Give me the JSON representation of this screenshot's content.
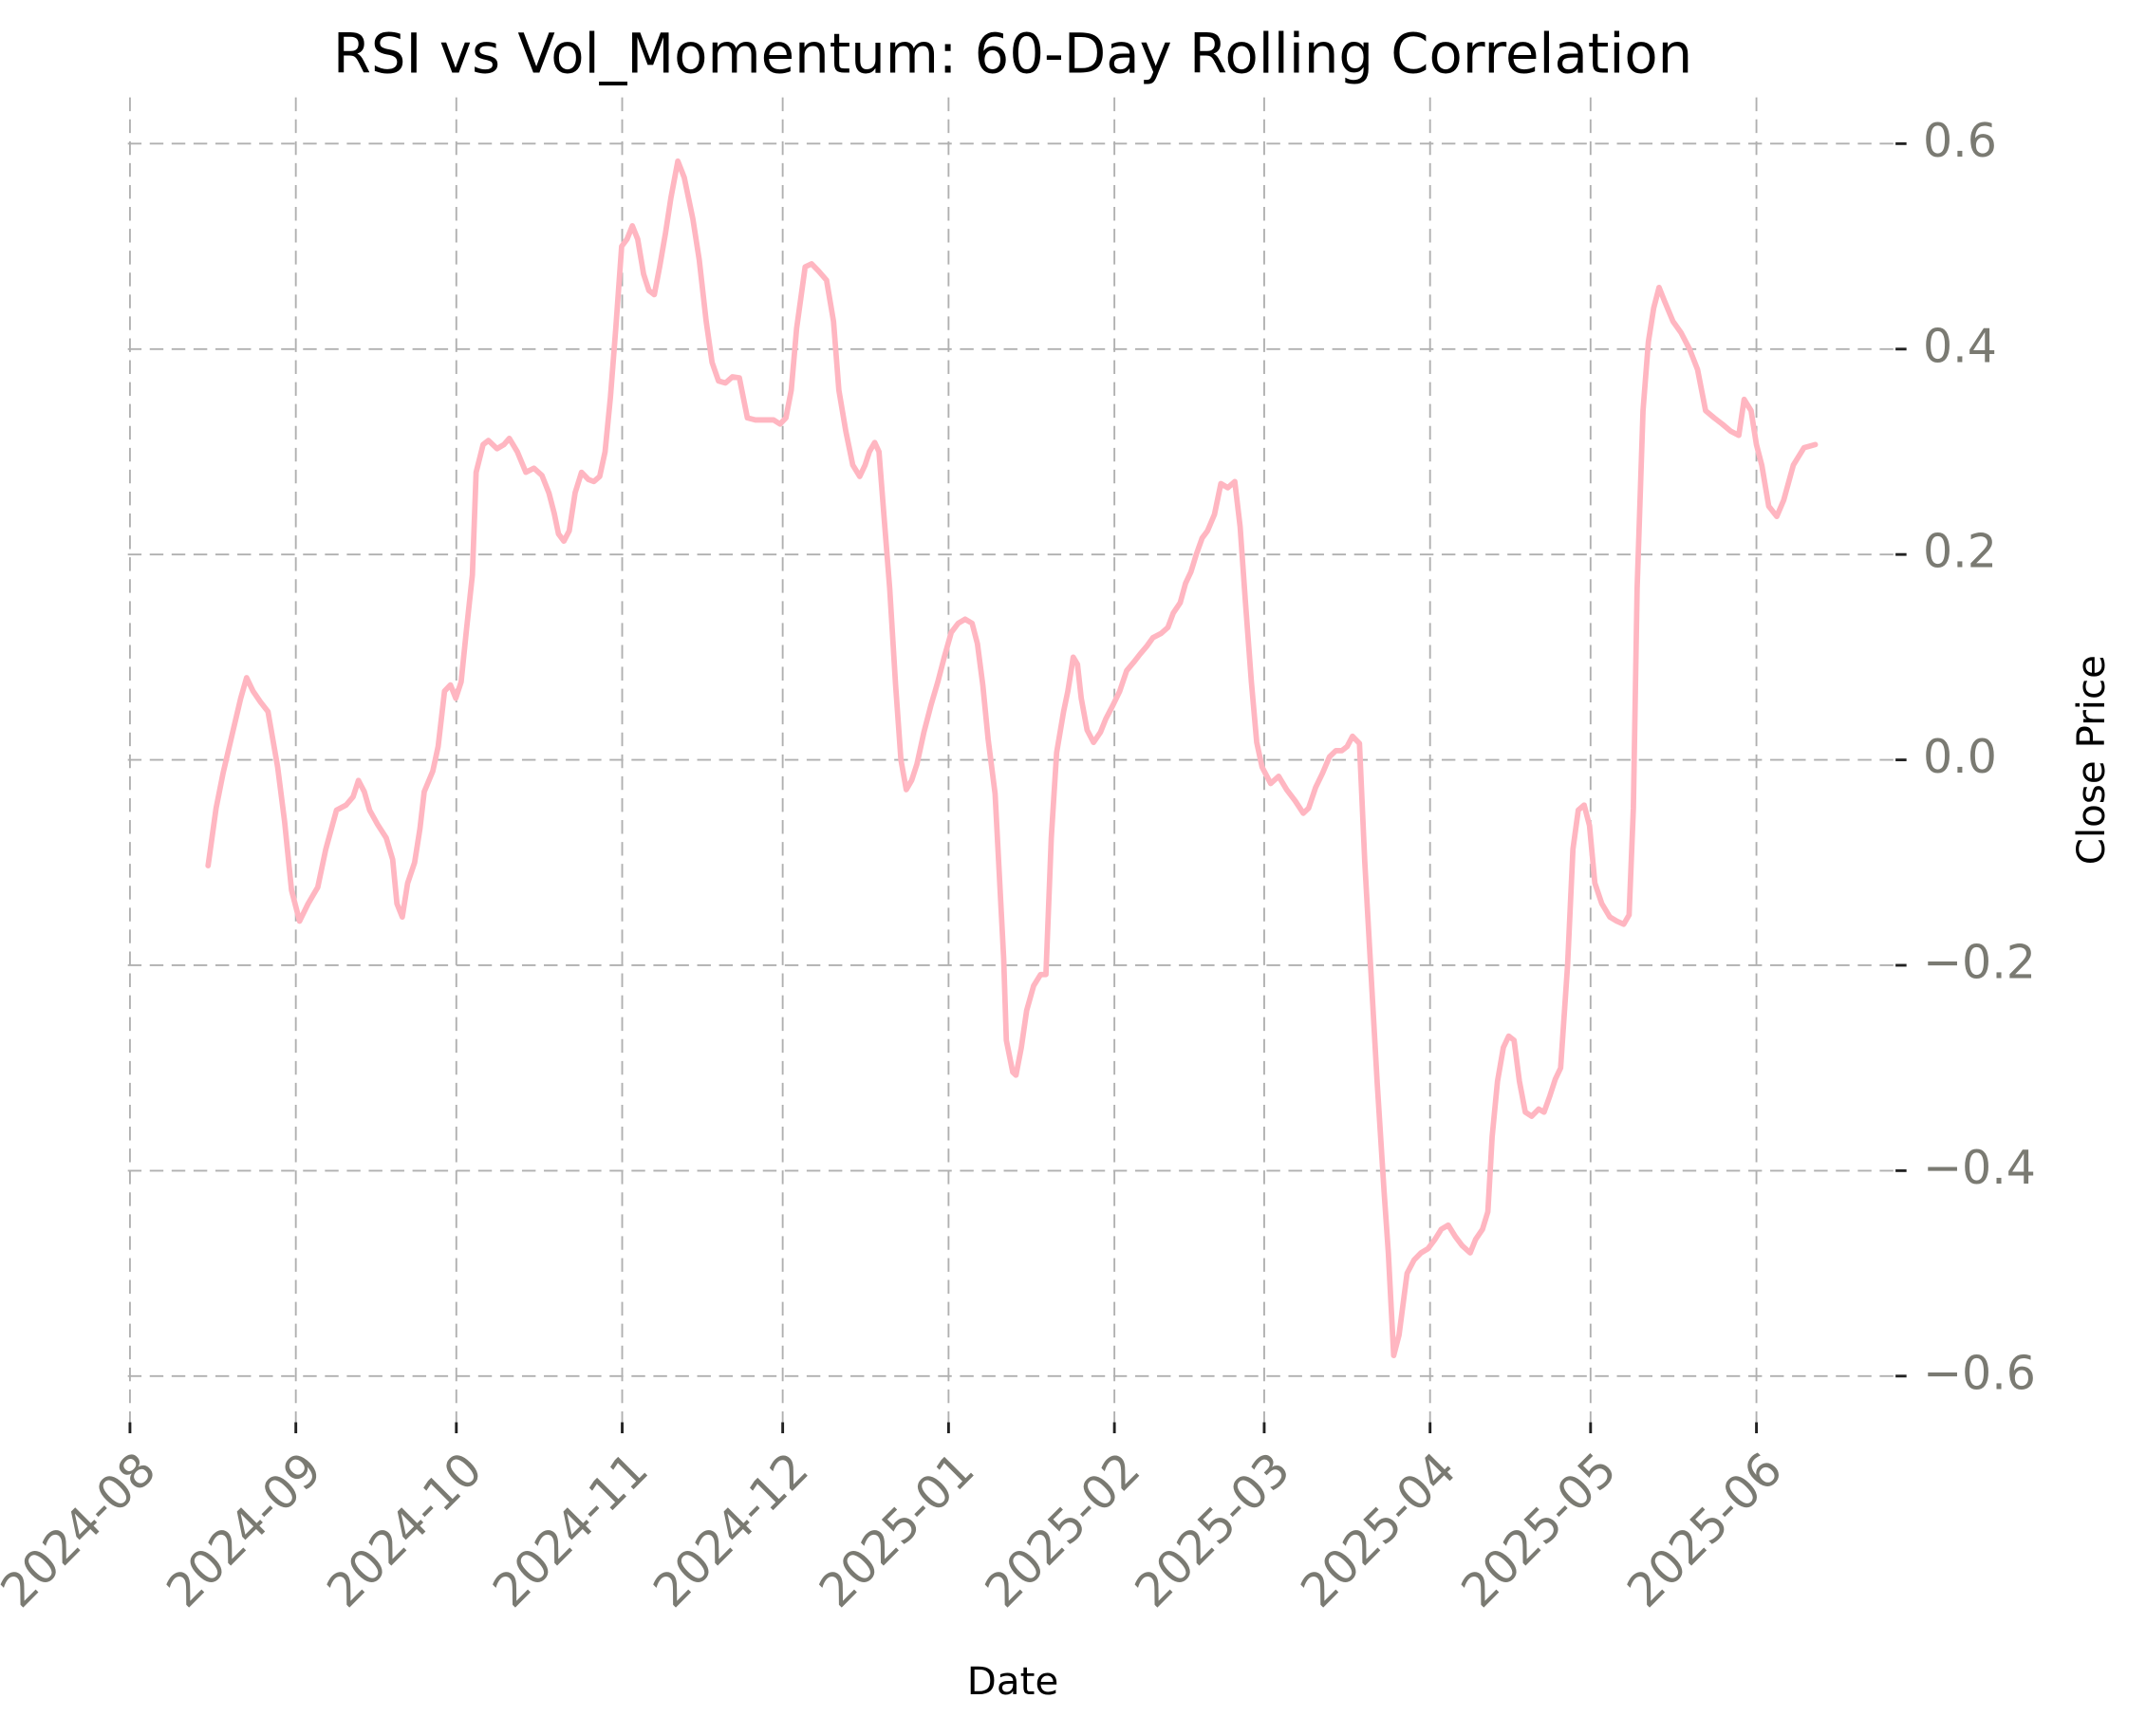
{
  "chart_data": {
    "type": "line",
    "title": "RSI vs Vol_Momentum: 60-Day Rolling Correlation",
    "x_label": "Date",
    "y_label": "Close Price",
    "color": "#ffb6c1",
    "grid": true,
    "xlim": [
      -0.4,
      330
    ],
    "ylim": [
      -0.645,
      0.645
    ],
    "xticks": [
      {
        "value": 0,
        "label": "2024-08"
      },
      {
        "value": 31,
        "label": "2024-09"
      },
      {
        "value": 61,
        "label": "2024-10"
      },
      {
        "value": 92,
        "label": "2024-11"
      },
      {
        "value": 122,
        "label": "2024-12"
      },
      {
        "value": 153,
        "label": "2025-01"
      },
      {
        "value": 184,
        "label": "2025-02"
      },
      {
        "value": 212,
        "label": "2025-03"
      },
      {
        "value": 243,
        "label": "2025-04"
      },
      {
        "value": 273,
        "label": "2025-05"
      },
      {
        "value": 304,
        "label": "2025-06"
      }
    ],
    "yticks": [
      {
        "value": 0.6,
        "label": "0.6"
      },
      {
        "value": 0.4,
        "label": "0.4"
      },
      {
        "value": 0.2,
        "label": "0.2"
      },
      {
        "value": 0,
        "label": "0.0"
      },
      {
        "value": -0.2,
        "label": "−0.2"
      },
      {
        "value": -0.4,
        "label": "−0.4"
      },
      {
        "value": -0.6,
        "label": "−0.6"
      }
    ],
    "x": [
      14.6,
      16.1,
      17.4,
      19.2,
      20.7,
      21.8,
      23.0,
      24.3,
      25.8,
      27.6,
      28.9,
      30.2,
      31.7,
      33.3,
      35.1,
      36.6,
      38.6,
      40.4,
      41.7,
      42.7,
      43.8,
      44.8,
      46.3,
      47.9,
      49.1,
      49.9,
      50.9,
      51.9,
      53.2,
      54.2,
      55.0,
      56.6,
      57.6,
      58.8,
      59.9,
      60.9,
      61.9,
      62.9,
      64.0,
      64.7,
      66.0,
      67.0,
      68.6,
      69.9,
      70.9,
      72.4,
      74.0,
      75.5,
      77.0,
      78.3,
      79.3,
      80.1,
      81.1,
      82.1,
      83.2,
      84.4,
      85.7,
      86.7,
      87.8,
      88.8,
      89.8,
      90.8,
      91.9,
      92.9,
      93.9,
      94.9,
      96.0,
      97.0,
      98.0,
      99.0,
      100.1,
      101.1,
      102.4,
      103.6,
      105.2,
      106.4,
      107.7,
      108.8,
      110.0,
      111.3,
      112.6,
      113.9,
      115.4,
      116.9,
      119.0,
      120.3,
      121.5,
      122.6,
      123.6,
      124.6,
      126.2,
      127.4,
      128.7,
      130.2,
      131.5,
      132.5,
      133.8,
      135.1,
      136.4,
      137.4,
      138.2,
      139.2,
      140.0,
      141.0,
      142.0,
      143.1,
      144.1,
      145.1,
      146.1,
      147.1,
      148.4,
      149.7,
      151.0,
      152.2,
      153.5,
      154.8,
      156.1,
      157.4,
      158.4,
      159.4,
      160.4,
      161.7,
      162.5,
      163.3,
      163.8,
      165.0,
      165.6,
      166.6,
      167.6,
      168.9,
      170.2,
      171.2,
      172.2,
      173.2,
      174.5,
      175.3,
      176.3,
      177.1,
      177.8,
      178.9,
      180.1,
      181.4,
      182.4,
      183.7,
      185.0,
      186.3,
      187.6,
      188.8,
      190.1,
      191.2,
      192.7,
      194.0,
      195.0,
      196.3,
      197.3,
      198.3,
      199.3,
      200.4,
      201.4,
      202.7,
      203.9,
      205.2,
      206.5,
      207.5,
      208.5,
      209.6,
      210.6,
      211.6,
      213.2,
      214.7,
      216.2,
      217.8,
      219.3,
      220.3,
      221.6,
      222.9,
      224.2,
      225.4,
      226.5,
      227.5,
      228.5,
      229.8,
      230.8,
      231.8,
      233.1,
      234.4,
      235.2,
      236.2,
      237.2,
      238.7,
      240.0,
      241.3,
      242.6,
      243.9,
      245.1,
      246.4,
      247.7,
      249.0,
      250.5,
      251.5,
      252.8,
      253.8,
      254.6,
      255.6,
      256.7,
      257.7,
      258.7,
      259.7,
      260.8,
      262.0,
      263.3,
      264.3,
      265.4,
      266.4,
      267.4,
      268.7,
      269.7,
      270.7,
      271.8,
      272.8,
      273.8,
      275.1,
      276.6,
      277.9,
      279.2,
      280.2,
      281.0,
      281.7,
      282.8,
      283.8,
      284.8,
      285.8,
      286.8,
      288.4,
      289.9,
      291.5,
      293.0,
      294.5,
      296.1,
      297.6,
      299.2,
      300.7,
      301.7,
      303.0,
      304.0,
      305.0,
      306.3,
      307.8,
      309.1,
      310.9,
      312.9,
      315.0
    ],
    "values": [
      -0.103,
      -0.047,
      -0.013,
      0.027,
      0.06,
      0.08,
      0.067,
      0.057,
      0.047,
      -0.007,
      -0.06,
      -0.127,
      -0.157,
      -0.14,
      -0.124,
      -0.087,
      -0.049,
      -0.044,
      -0.036,
      -0.02,
      -0.031,
      -0.049,
      -0.063,
      -0.076,
      -0.097,
      -0.14,
      -0.153,
      -0.12,
      -0.1,
      -0.067,
      -0.031,
      -0.011,
      0.013,
      0.067,
      0.073,
      0.06,
      0.076,
      0.127,
      0.18,
      0.28,
      0.307,
      0.311,
      0.303,
      0.307,
      0.313,
      0.3,
      0.28,
      0.284,
      0.277,
      0.26,
      0.24,
      0.22,
      0.213,
      0.223,
      0.26,
      0.28,
      0.273,
      0.271,
      0.276,
      0.3,
      0.353,
      0.42,
      0.5,
      0.507,
      0.52,
      0.507,
      0.473,
      0.457,
      0.453,
      0.48,
      0.513,
      0.547,
      0.583,
      0.567,
      0.527,
      0.487,
      0.427,
      0.387,
      0.369,
      0.367,
      0.373,
      0.372,
      0.333,
      0.331,
      0.331,
      0.331,
      0.327,
      0.333,
      0.36,
      0.42,
      0.48,
      0.483,
      0.476,
      0.467,
      0.427,
      0.36,
      0.32,
      0.287,
      0.276,
      0.287,
      0.3,
      0.309,
      0.3,
      0.233,
      0.167,
      0.073,
      0.0,
      -0.029,
      -0.02,
      -0.004,
      0.027,
      0.053,
      0.076,
      0.1,
      0.124,
      0.133,
      0.137,
      0.133,
      0.113,
      0.073,
      0.02,
      -0.033,
      -0.113,
      -0.193,
      -0.273,
      -0.304,
      -0.307,
      -0.28,
      -0.244,
      -0.22,
      -0.209,
      -0.209,
      -0.076,
      0.007,
      0.047,
      0.067,
      0.1,
      0.093,
      0.06,
      0.029,
      0.017,
      0.027,
      0.04,
      0.053,
      0.067,
      0.087,
      0.095,
      0.103,
      0.111,
      0.119,
      0.123,
      0.129,
      0.143,
      0.153,
      0.172,
      0.183,
      0.2,
      0.216,
      0.223,
      0.239,
      0.269,
      0.265,
      0.271,
      0.227,
      0.153,
      0.076,
      0.017,
      -0.007,
      -0.023,
      -0.016,
      -0.029,
      -0.04,
      -0.052,
      -0.047,
      -0.027,
      -0.013,
      0.003,
      0.009,
      0.009,
      0.013,
      0.023,
      0.016,
      -0.1,
      -0.193,
      -0.313,
      -0.42,
      -0.48,
      -0.58,
      -0.56,
      -0.5,
      -0.487,
      -0.48,
      -0.476,
      -0.467,
      -0.457,
      -0.453,
      -0.464,
      -0.473,
      -0.48,
      -0.467,
      -0.457,
      -0.44,
      -0.367,
      -0.313,
      -0.28,
      -0.269,
      -0.273,
      -0.313,
      -0.343,
      -0.347,
      -0.34,
      -0.343,
      -0.327,
      -0.311,
      -0.3,
      -0.2,
      -0.087,
      -0.049,
      -0.044,
      -0.064,
      -0.12,
      -0.14,
      -0.153,
      -0.157,
      -0.16,
      -0.151,
      -0.047,
      0.167,
      0.34,
      0.407,
      0.44,
      0.46,
      0.447,
      0.427,
      0.416,
      0.4,
      0.38,
      0.34,
      0.333,
      0.327,
      0.32,
      0.316,
      0.351,
      0.34,
      0.307,
      0.287,
      0.247,
      0.237,
      0.253,
      0.287,
      0.304,
      0.307
    ]
  }
}
